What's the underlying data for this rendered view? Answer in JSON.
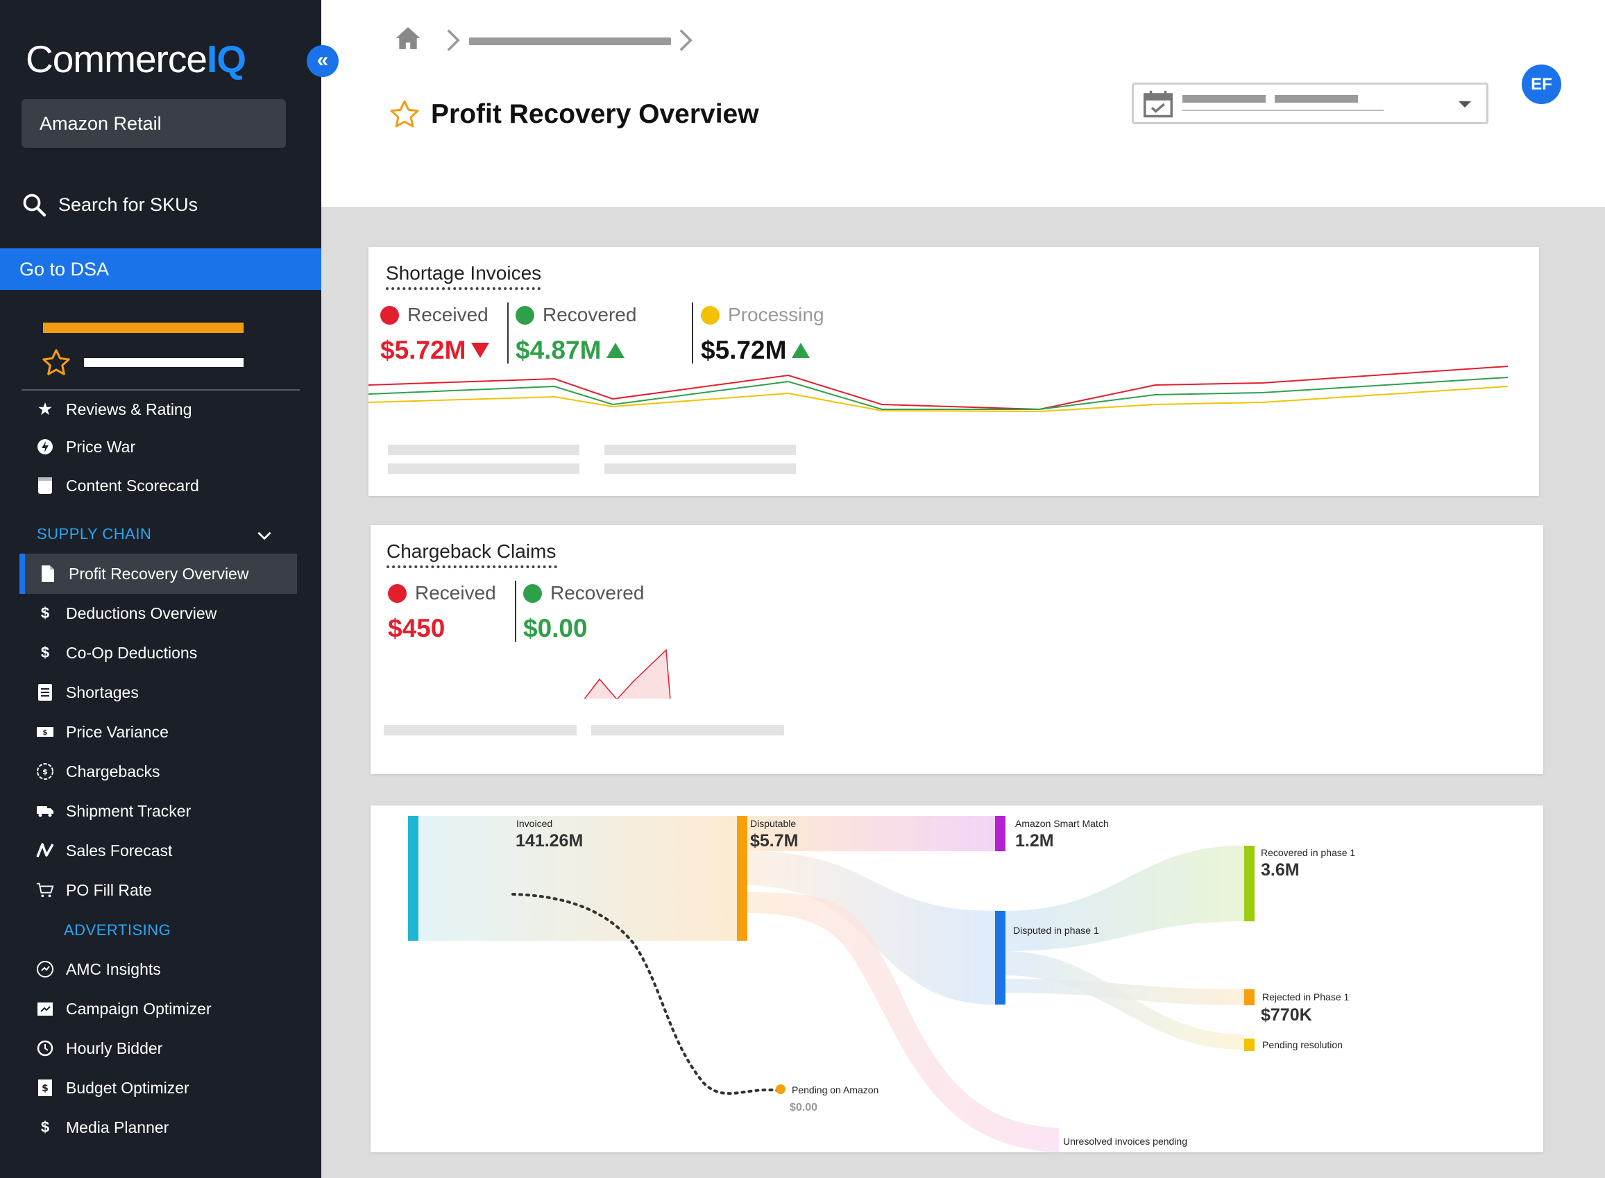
{
  "sidebar": {
    "logo_main": "Commerce",
    "logo_accent": "IQ",
    "retailer": "Amazon Retail",
    "search_label": "Search for SKUs",
    "dsa_label": "Go to DSA",
    "items_top": [
      {
        "label": "Reviews & Rating",
        "icon": "star-icon"
      },
      {
        "label": "Price War",
        "icon": "bolt-icon"
      },
      {
        "label": "Content Scorecard",
        "icon": "scorecard-icon"
      }
    ],
    "supply_chain_header": "SUPPLY CHAIN",
    "supply_chain_items": [
      {
        "label": "Profit Recovery Overview",
        "icon": "document-icon",
        "active": true
      },
      {
        "label": "Deductions Overview",
        "icon": "dollar-icon"
      },
      {
        "label": "Co-Op Deductions",
        "icon": "dollar-icon"
      },
      {
        "label": "Shortages",
        "icon": "list-doc-icon"
      },
      {
        "label": "Price Variance",
        "icon": "price-tag-icon"
      },
      {
        "label": "Chargebacks",
        "icon": "coin-icon"
      },
      {
        "label": "Shipment Tracker",
        "icon": "truck-icon"
      },
      {
        "label": "Sales Forecast",
        "icon": "forecast-icon"
      },
      {
        "label": "PO Fill Rate",
        "icon": "cart-icon"
      }
    ],
    "advertising_header": "ADVERTISING",
    "advertising_items": [
      {
        "label": "AMC Insights",
        "icon": "insights-icon"
      },
      {
        "label": "Campaign Optimizer",
        "icon": "campaign-icon"
      },
      {
        "label": "Hourly Bidder",
        "icon": "clock-icon"
      },
      {
        "label": "Budget Optimizer",
        "icon": "budget-icon"
      },
      {
        "label": "Media Planner",
        "icon": "dollar-icon"
      }
    ]
  },
  "header": {
    "title": "Profit Recovery Overview",
    "avatar_initials": "EF"
  },
  "shortage": {
    "title": "Shortage Invoices",
    "metrics": [
      {
        "label": "Received",
        "value": "$5.72M",
        "color": "#e31e2d",
        "trend": "down"
      },
      {
        "label": "Recovered",
        "value": "$4.87M",
        "color": "#2ea04a",
        "trend": "up"
      },
      {
        "label": "Processing",
        "value": "$5.72M",
        "color": "#f2c200",
        "trend": "up"
      }
    ]
  },
  "chargeback": {
    "title": "Chargeback Claims",
    "metrics": [
      {
        "label": "Received",
        "value": "$450",
        "color": "#e31e2d"
      },
      {
        "label": "Recovered",
        "value": "$0.00",
        "color": "#2ea04a"
      }
    ]
  },
  "sankey": {
    "nodes": [
      {
        "id": "invoiced",
        "label": "Invoiced",
        "value": "141.26M",
        "color": "#1fb6d4"
      },
      {
        "id": "disputable",
        "label": "Disputable",
        "value": "$5.7M",
        "color": "#f5a00c"
      },
      {
        "id": "smart_match",
        "label": "Amazon Smart Match",
        "value": "1.2M",
        "color": "#b620d4"
      },
      {
        "id": "disputed_p1",
        "label": "Disputed in phase 1",
        "value": "",
        "color": "#1a73e8"
      },
      {
        "id": "recovered_p1",
        "label": "Recovered in phase 1",
        "value": "3.6M",
        "color": "#9bcc0f"
      },
      {
        "id": "rejected_p1",
        "label": "Rejected in Phase 1",
        "value": "$770K",
        "color": "#f5a00c"
      },
      {
        "id": "pending_res",
        "label": "Pending resolution",
        "value": "",
        "color": "#f2c200"
      },
      {
        "id": "pending_amazon",
        "label": "Pending on Amazon",
        "value": "$0.00",
        "color": "#f5a00c"
      },
      {
        "id": "unresolved",
        "label": "Unresolved invoices pending",
        "value": "",
        "color": "#f2a0d8"
      }
    ]
  },
  "colors": {
    "sidebar_bg": "#1b1f28",
    "accent_blue": "#1a73e8",
    "received_red": "#e31e2d",
    "recovered_green": "#2ea04a",
    "processing_yellow": "#f2c200"
  }
}
